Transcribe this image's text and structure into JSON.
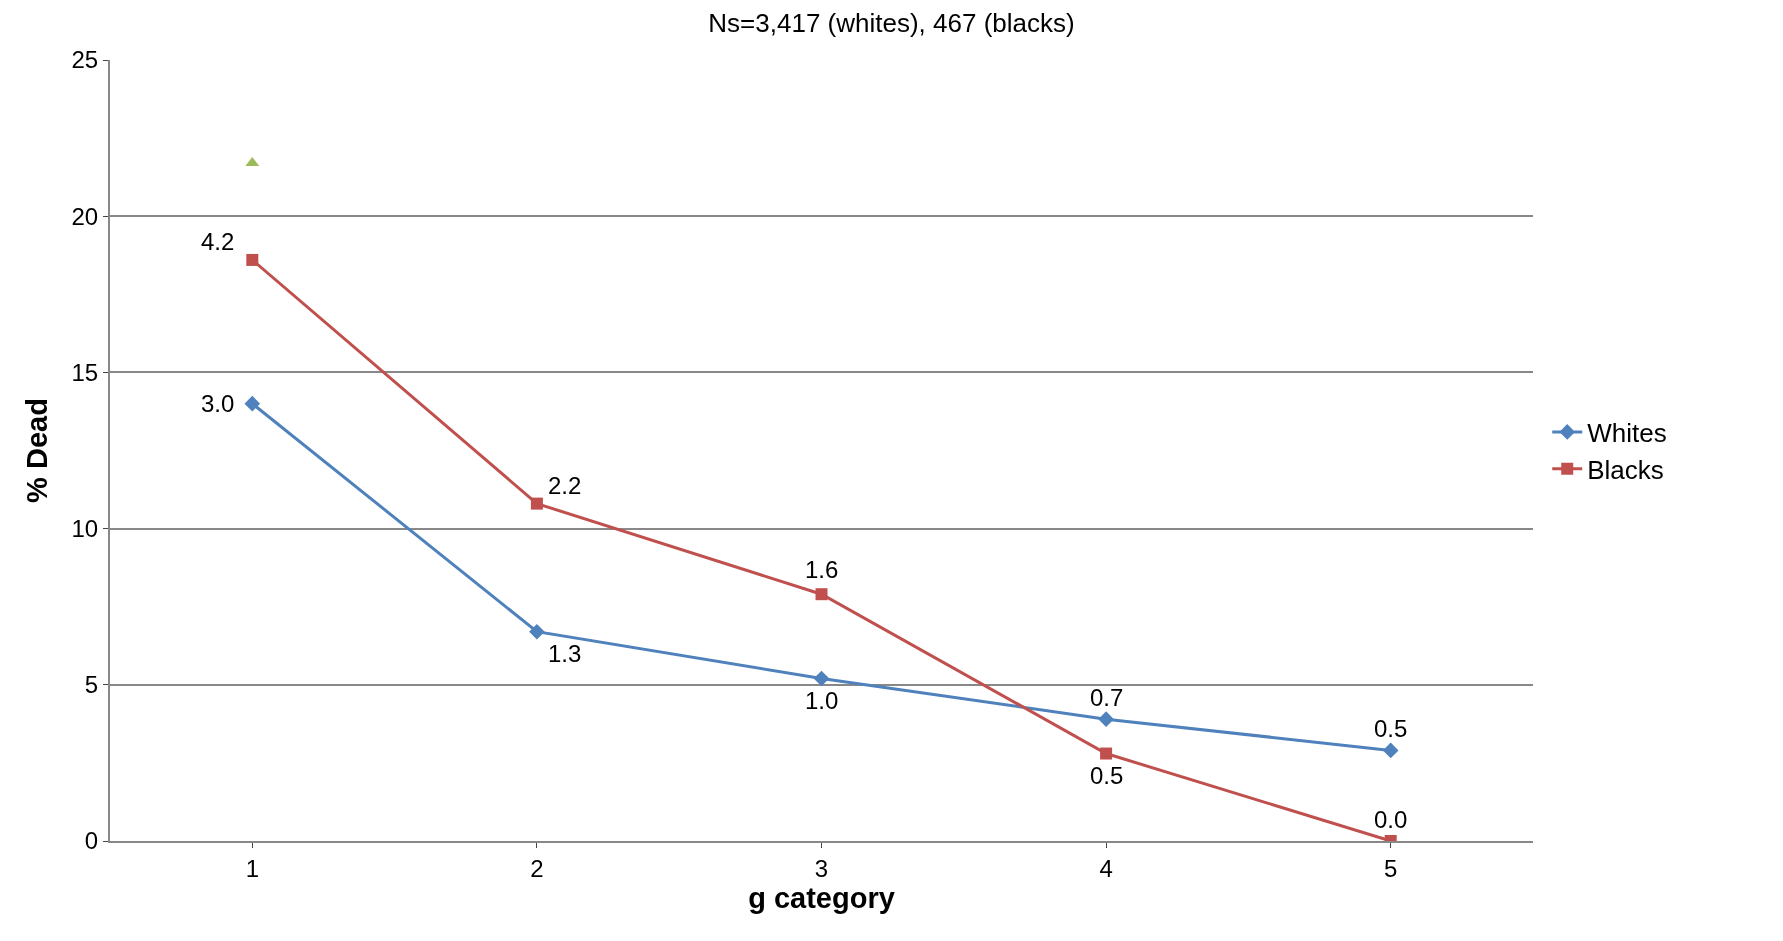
{
  "chart_data": {
    "type": "line",
    "title": "Ns=3,417 (whites), 467 (blacks)",
    "xlabel": "g category",
    "ylabel": "% Dead",
    "categories": [
      "1",
      "2",
      "3",
      "4",
      "5"
    ],
    "series": [
      {
        "name": "Whites",
        "color": "#4f81bd",
        "marker": "diamond",
        "values": [
          14.0,
          6.7,
          5.2,
          3.9,
          2.9
        ]
      },
      {
        "name": "Blacks",
        "color": "#c0504d",
        "marker": "square",
        "values": [
          18.6,
          10.8,
          7.9,
          2.8,
          0.0
        ]
      },
      {
        "color": "#9bbb59",
        "marker": "triangle",
        "values": [
          21.7,
          null,
          null,
          null,
          null
        ]
      }
    ],
    "annotations": [
      {
        "text": "3.0",
        "x": "1",
        "y": 14.0
      },
      {
        "text": "1.3",
        "x": "2",
        "y": 6.7
      },
      {
        "text": "1.0",
        "x": "3",
        "y": 5.2
      },
      {
        "text": "0.7",
        "x": "4",
        "y": 3.9
      },
      {
        "text": "0.5",
        "x": "5",
        "y": 2.9
      },
      {
        "text": "4.2",
        "x": "1",
        "y": 18.6
      },
      {
        "text": "2.2",
        "x": "2",
        "y": 10.8
      },
      {
        "text": "1.6",
        "x": "3",
        "y": 7.9
      },
      {
        "text": "0.5",
        "x": "4",
        "y": 2.8
      },
      {
        "text": "0.0",
        "x": "5",
        "y": 0.0
      }
    ],
    "ylim": [
      0,
      25
    ],
    "yticks": [
      0,
      5,
      10,
      15,
      20,
      25
    ],
    "grid": "y",
    "legend": "right",
    "line_style": "solid"
  }
}
